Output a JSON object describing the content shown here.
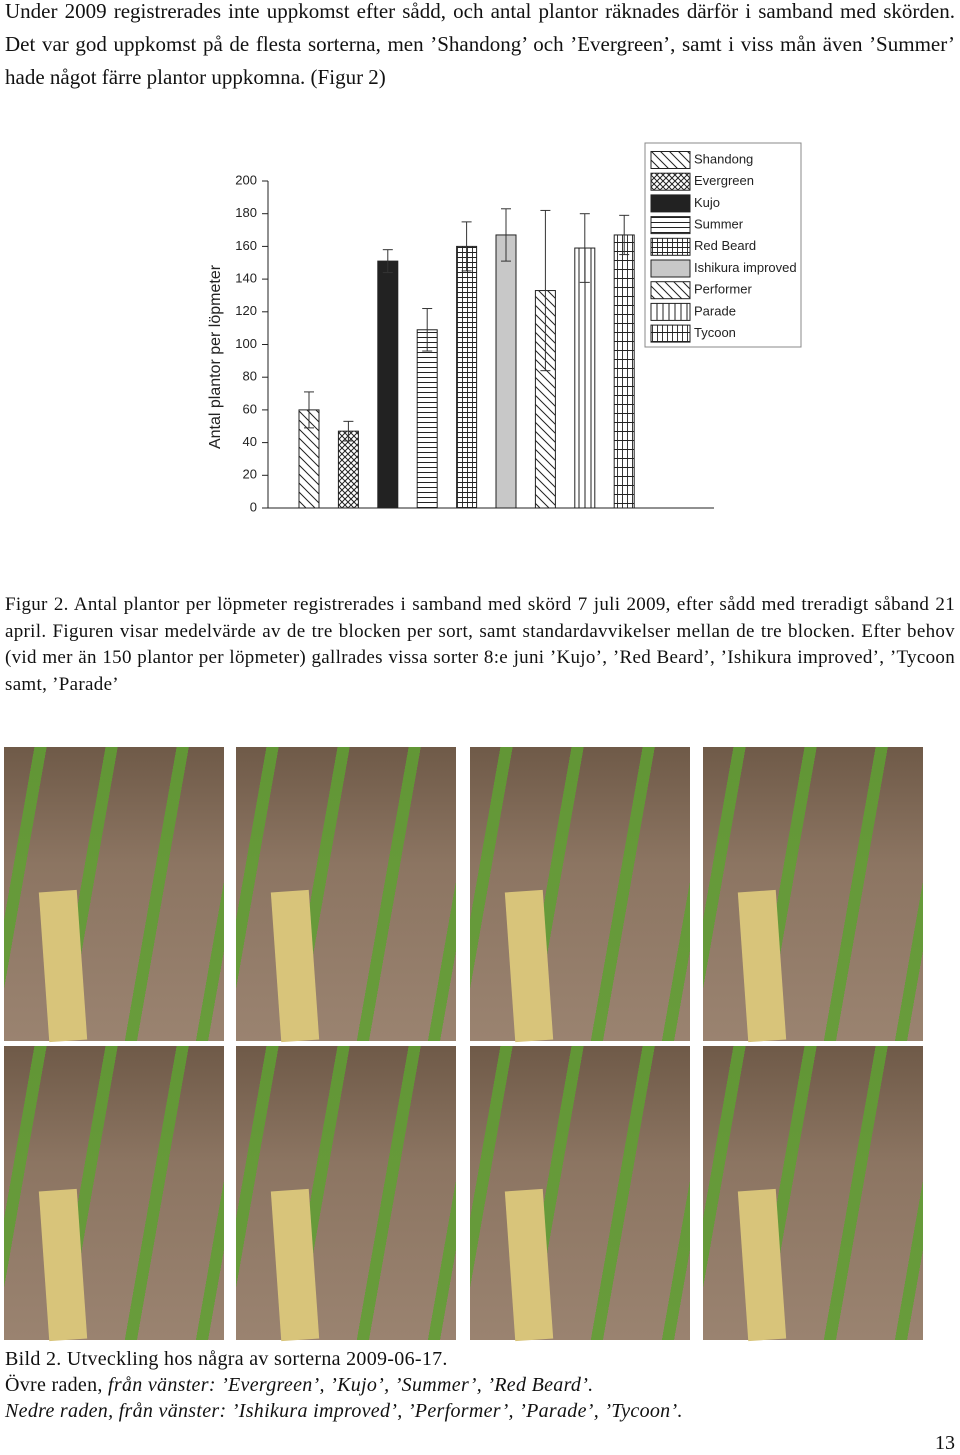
{
  "paragraph": "Under 2009 registrerades inte uppkomst efter sådd, och antal plantor räknades därför i samband med skörden. Det var god uppkomst på de flesta sorterna, men ’Shandong’ och ’Evergreen’, samt i viss mån även ’Summer’ hade något färre plantor uppkomna. (Figur 2)",
  "chart_data": {
    "type": "bar",
    "y_label": "Antal plantor per löpmeter",
    "ylim": [
      0,
      200
    ],
    "yticks": [
      0,
      20,
      40,
      60,
      80,
      100,
      120,
      140,
      160,
      180,
      200
    ],
    "series": [
      {
        "name": "Shandong",
        "pattern": "diag-back",
        "values": [
          60
        ],
        "errors": [
          11
        ]
      },
      {
        "name": "Evergreen",
        "pattern": "crosshatch",
        "values": [
          47
        ],
        "errors": [
          6
        ]
      },
      {
        "name": "Kujo",
        "pattern": "solid-dark",
        "values": [
          151
        ],
        "errors": [
          7
        ]
      },
      {
        "name": "Summer",
        "pattern": "horizontal",
        "values": [
          109
        ],
        "errors": [
          13
        ]
      },
      {
        "name": "Red Beard",
        "pattern": "grid",
        "values": [
          160
        ],
        "errors": [
          15
        ]
      },
      {
        "name": "Ishikura improved",
        "pattern": "solid-light",
        "values": [
          167
        ],
        "errors": [
          16
        ]
      },
      {
        "name": "Performer",
        "pattern": "diag-back",
        "values": [
          133
        ],
        "errors": [
          49
        ]
      },
      {
        "name": "Parade",
        "pattern": "vertical",
        "values": [
          159
        ],
        "errors": [
          21
        ]
      },
      {
        "name": "Tycoon",
        "pattern": "vertical-grid",
        "values": [
          167
        ],
        "errors": [
          12
        ]
      }
    ]
  },
  "figure_caption": "Figur 2. Antal plantor per löpmeter registrerades i samband med skörd 7 juli 2009, efter sådd med treradigt såband 21 april. Figuren visar medelvärde av de tre blocken per sort, samt standardavvikelser mellan de tre blocken. Efter behov (vid mer än 150 plantor per löpmeter) gallrades vissa sorter 8:e juni ’Kujo’, ’Red Beard’, ’Ishikura improved’, ’Tycoon samt, ’Parade’",
  "photo_caption": {
    "title": "Bild 2. Utveckling hos några av sorterna 2009-06-17.",
    "upper_lead": "Övre raden, ",
    "upper_rest": "från vänster: ’Evergreen’, ’Kujo’, ’Summer’, ’Red Beard’.",
    "lower": "Nedre raden, från vänster: ’Ishikura improved’, ’Performer’, ’Parade’, ’Tycoon’."
  },
  "page_number": "13"
}
